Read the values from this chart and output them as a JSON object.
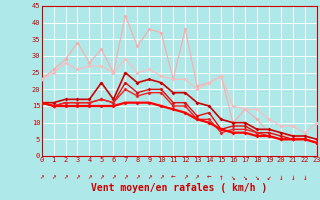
{
  "background_color": "#aee8e8",
  "grid_color": "#ffffff",
  "xlabel": "Vent moyen/en rafales ( km/h )",
  "xlim": [
    0,
    23
  ],
  "ylim": [
    0,
    45
  ],
  "yticks": [
    0,
    5,
    10,
    15,
    20,
    25,
    30,
    35,
    40,
    45
  ],
  "xticks": [
    0,
    1,
    2,
    3,
    4,
    5,
    6,
    7,
    8,
    9,
    10,
    11,
    12,
    13,
    14,
    15,
    16,
    17,
    18,
    19,
    20,
    21,
    22,
    23
  ],
  "series": [
    {
      "y": [
        23,
        26,
        29,
        34,
        28,
        32,
        25,
        42,
        33,
        38,
        37,
        23,
        38,
        21,
        22,
        24,
        10,
        14,
        11,
        7,
        6,
        6,
        5,
        4
      ],
      "color": "#ffaaaa",
      "linewidth": 0.8,
      "markersize": 2.0
    },
    {
      "y": [
        23,
        25,
        28,
        26,
        27,
        27,
        25,
        29,
        25,
        26,
        24,
        23,
        23,
        20,
        22,
        24,
        15,
        14,
        14,
        11,
        9,
        9,
        7,
        10
      ],
      "color": "#ffbbbb",
      "linewidth": 0.8,
      "markersize": 2.0
    },
    {
      "y": [
        16,
        16,
        17,
        17,
        17,
        22,
        17,
        25,
        22,
        23,
        22,
        19,
        19,
        16,
        15,
        11,
        10,
        10,
        8,
        8,
        7,
        6,
        6,
        5
      ],
      "color": "#cc0000",
      "linewidth": 1.2,
      "markersize": 2.0
    },
    {
      "y": [
        16,
        15,
        16,
        16,
        16,
        17,
        16,
        22,
        19,
        20,
        20,
        16,
        16,
        12,
        13,
        8,
        9,
        9,
        7,
        7,
        6,
        5,
        5,
        4
      ],
      "color": "#dd1111",
      "linewidth": 1.0,
      "markersize": 2.0
    },
    {
      "y": [
        16,
        15,
        16,
        16,
        16,
        17,
        16,
        20,
        18,
        19,
        19,
        15,
        15,
        11,
        11,
        7,
        8,
        8,
        7,
        6,
        5,
        5,
        5,
        4
      ],
      "color": "#ee2222",
      "linewidth": 1.0,
      "markersize": 2.0
    },
    {
      "y": [
        16,
        15,
        15,
        15,
        15,
        15,
        15,
        16,
        16,
        16,
        15,
        14,
        13,
        11,
        10,
        8,
        7,
        7,
        6,
        6,
        5,
        5,
        5,
        4
      ],
      "color": "#ff0000",
      "linewidth": 1.6,
      "markersize": 2.0
    }
  ],
  "wind_arrows": [
    "↗",
    "↗",
    "↗",
    "↗",
    "↗",
    "↗",
    "↗",
    "↗",
    "↗",
    "↗",
    "↗",
    "←",
    "↗",
    "↗",
    "←",
    "↑",
    "↘",
    "↘",
    "↘",
    "↙",
    "↓",
    "↓",
    "↓"
  ],
  "text_color": "#cc0000",
  "tick_fontsize": 5,
  "xlabel_fontsize": 7
}
